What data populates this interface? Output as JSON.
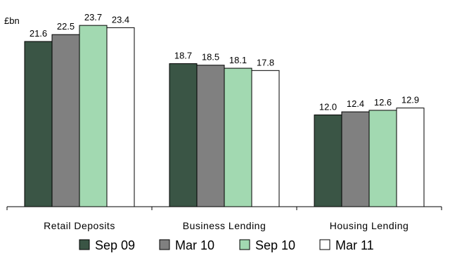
{
  "chart_data": {
    "type": "bar",
    "ylabel": "£bn",
    "ylim": [
      0,
      25
    ],
    "grid": false,
    "legend_position": "bottom",
    "categories": [
      "Retail Deposits",
      "Business Lending",
      "Housing Lending"
    ],
    "series": [
      {
        "name": "Sep 09",
        "color": "#3a5545",
        "values": [
          21.6,
          18.7,
          12.0
        ]
      },
      {
        "name": "Mar 10",
        "color": "#808080",
        "values": [
          22.5,
          18.5,
          12.4
        ]
      },
      {
        "name": "Sep 10",
        "color": "#a2d9b1",
        "values": [
          23.7,
          18.1,
          12.6
        ]
      },
      {
        "name": "Mar 11",
        "color": "#ffffff",
        "values": [
          23.4,
          17.8,
          12.9
        ]
      }
    ]
  }
}
